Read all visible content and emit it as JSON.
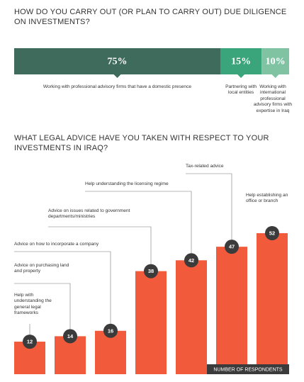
{
  "chart_data": [
    {
      "type": "stacked-bar",
      "title": "HOW DO YOU CARRY OUT (OR PLAN TO CARRY OUT) DUE DILIGENCE ON INVESTMENTS?",
      "series": [
        {
          "name": "Working with professional advisory firms that have a domestic presence",
          "color": "#3e6b5c",
          "values": [
            75
          ],
          "value_labels": [
            "75%"
          ]
        },
        {
          "name": "Partnering with local entities",
          "color": "#3aa57b",
          "values": [
            15
          ],
          "value_labels": [
            "15%"
          ]
        },
        {
          "name": "Working with international professional advisory firms with expertise in Iraq",
          "color": "#80c3a3",
          "values": [
            10
          ],
          "value_labels": [
            "10%"
          ]
        }
      ]
    },
    {
      "type": "bar",
      "title": "WHAT LEGAL ADVICE HAVE YOU TAKEN WITH RESPECT TO YOUR INVESTMENTS IN IRAQ?",
      "categories": [
        "Help with understanding the general legal frameworks",
        "Advice on purchasing land and property",
        "Advice on how to incorporate a company",
        "Advice on issues related to government departments/ministries",
        "Help understanding the licensing regime",
        "Tax-related advice",
        "Help establishing an office or branch"
      ],
      "values": [
        12,
        14,
        16,
        38,
        42,
        47,
        52
      ],
      "color": "#f15a3a",
      "label_color": "#3b3b3b",
      "y_label": "NUMBER OF RESPONDENTS"
    }
  ]
}
